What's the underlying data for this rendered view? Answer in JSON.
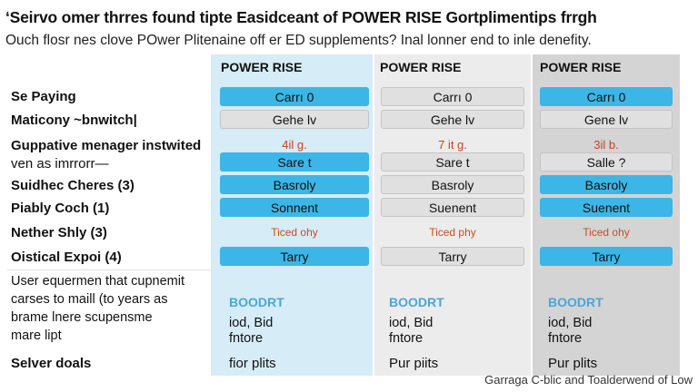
{
  "title": "‘Seirvo omer thrres found tipte Easidceant of POWER RISE Gortplimentips frrgh",
  "subtitle": "Ouch flosr nes clove POwer Plitenaine off er ED supplements? Inal lonner end to inle denefity.",
  "columns": [
    "POWER RISE",
    "POWER RISE",
    "POWER RISE"
  ],
  "rows": {
    "r1": {
      "label": "Se Paying",
      "cells": [
        "Carrı 0",
        "Carrı 0",
        "Carrı 0"
      ]
    },
    "r2": {
      "label": "Maticony ~bnwitch|",
      "cells": [
        "Gehe lv",
        "Gehe lv",
        "Gene lv"
      ]
    },
    "r3": {
      "label_line1": "Guppative menager instwited",
      "label_line2": "ven as imrrorr—",
      "top": [
        "4il g.",
        "7 it g.",
        "3il b."
      ],
      "cells": [
        "Sare t",
        "Sare t",
        "Salle ?"
      ]
    },
    "r4": {
      "label": "Suidhec Cheres (3)",
      "cells": [
        "Basroly",
        "Basroly",
        "Basroly"
      ]
    },
    "r5": {
      "label": "Piably Coch (1)",
      "cells": [
        "Sonnent",
        "Suenent",
        "Suenent"
      ]
    },
    "r6": {
      "label": "Nether Shly (3)",
      "cells": [
        "Ticed ohy",
        "Ticed phy",
        "Ticed ohy"
      ]
    },
    "r7": {
      "label": "Oistical Expoi (4)",
      "cells": [
        "Tarry",
        "Tarry",
        "Tarry"
      ]
    },
    "r8": {
      "label_lines": [
        "User equermen that cupnemit",
        "carses to maill (to years as",
        "brame lnere scupensme",
        "mare lipt"
      ],
      "brand": [
        "BOODRT",
        "BOODRT",
        "BOODRT"
      ],
      "line1": [
        "iod, Bid",
        "iod, Bid",
        "iod, Bid"
      ],
      "line2": [
        "fntore",
        "fntore",
        "fntore"
      ]
    },
    "r9": {
      "label": "Selver doals",
      "cells": [
        "fior plits",
        "Pur piits",
        "Pur plits"
      ]
    }
  },
  "footer": "Garraga C-blic and Toalderwend of Low",
  "colors": {
    "blue_pill": "#3cb6e6",
    "col1_bg": "#d6ecf6",
    "col2_bg": "#ececec",
    "col3_bg": "#d4d4d4",
    "accent_red": "#c9421f"
  }
}
